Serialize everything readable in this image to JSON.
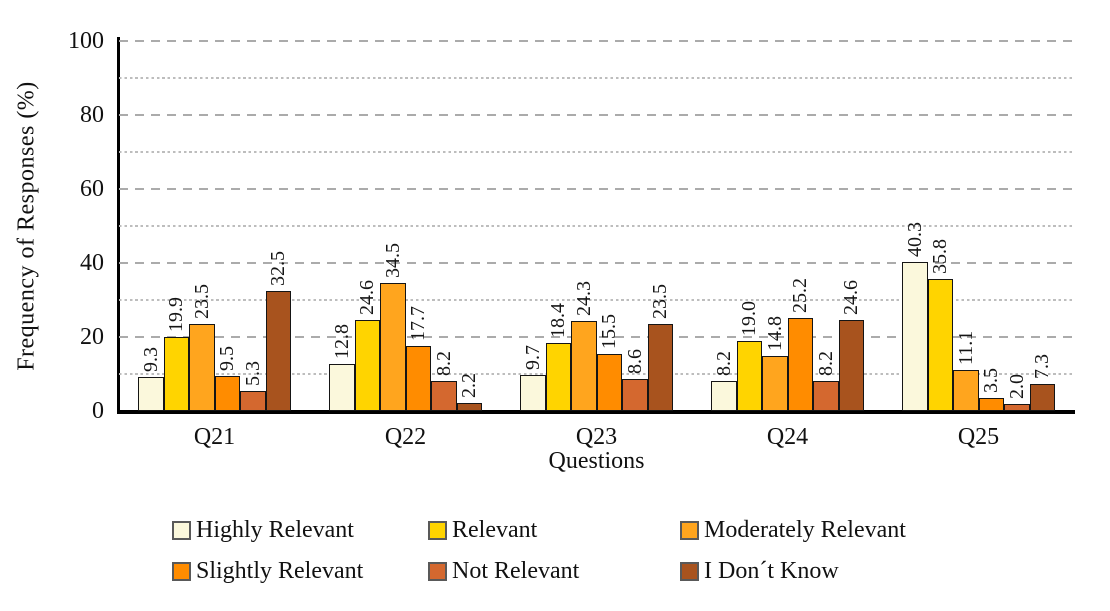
{
  "chart_data": {
    "type": "bar",
    "title": "",
    "xlabel": "Questions",
    "ylabel": "Frequency of Responses (%)",
    "ylim": [
      0,
      100
    ],
    "yticks": [
      0,
      20,
      40,
      60,
      80,
      100
    ],
    "grid": "horizontal line every 10 units: long-dash at multiples of 20, fine-dash at odd tens",
    "legend_position": "bottom, two rows",
    "categories": [
      "Q21",
      "Q22",
      "Q23",
      "Q24",
      "Q25"
    ],
    "series": [
      {
        "name": "Highly Relevant",
        "color": "#FBF8DC",
        "values": [
          9.3,
          12.8,
          9.7,
          8.2,
          40.3
        ]
      },
      {
        "name": "Relevant",
        "color": "#FFD400",
        "values": [
          19.9,
          24.6,
          18.4,
          19.0,
          35.8
        ]
      },
      {
        "name": "Moderately Relevant",
        "color": "#FFA51E",
        "values": [
          23.5,
          34.5,
          24.3,
          14.8,
          11.1
        ]
      },
      {
        "name": "Slightly Relevant",
        "color": "#FF8C00",
        "values": [
          9.5,
          17.7,
          15.5,
          25.2,
          3.5
        ]
      },
      {
        "name": "Not Relevant",
        "color": "#D4682F",
        "values": [
          5.3,
          8.2,
          8.6,
          8.2,
          2.0
        ]
      },
      {
        "name": "I Don´t Know",
        "color": "#A8531E",
        "values": [
          32.5,
          2.2,
          23.5,
          24.6,
          7.3
        ]
      }
    ],
    "value_labels": "every bar labeled with its value to one decimal, rotated 90° reading bottom-to-top",
    "legend_rows": [
      [
        0,
        1,
        2
      ],
      [
        3,
        4,
        5
      ]
    ]
  }
}
